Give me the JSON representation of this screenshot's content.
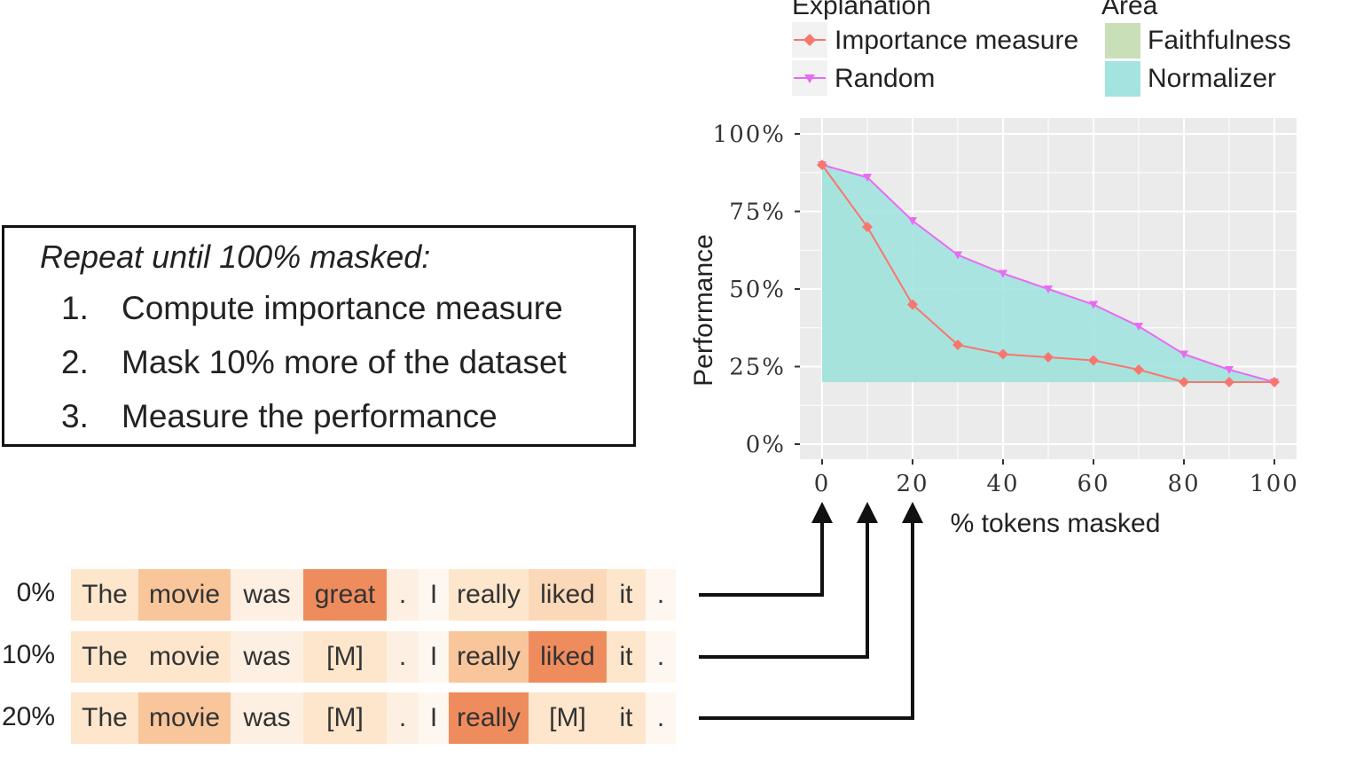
{
  "algorithm": {
    "heading": "Repeat until 100% masked:",
    "steps": [
      {
        "num": "1.",
        "text": "Compute importance measure"
      },
      {
        "num": "2.",
        "text": "Mask 10% more of the dataset"
      },
      {
        "num": "3.",
        "text": "Measure the performance"
      }
    ]
  },
  "legend": {
    "explanation_title": "Explanation",
    "area_title": "Area",
    "items": [
      {
        "label": "Importance measure",
        "color": "#f8766d",
        "marker": "diamond"
      },
      {
        "label": "Random",
        "color": "#e76bf3",
        "marker": "triangle-down"
      }
    ],
    "areas": [
      {
        "label": "Faithfulness",
        "color": "#c9dfb7"
      },
      {
        "label": "Normalizer",
        "color": "#a3e3e0"
      }
    ]
  },
  "chart_data": {
    "type": "line",
    "xlabel": "% tokens masked",
    "ylabel": "Performance",
    "x": [
      0,
      10,
      20,
      30,
      40,
      50,
      60,
      70,
      80,
      90,
      100
    ],
    "xlim": [
      0,
      100
    ],
    "ylim": [
      0,
      100
    ],
    "x_ticks": [
      {
        "value": 0,
        "label": "0"
      },
      {
        "value": 20,
        "label": "20"
      },
      {
        "value": 40,
        "label": "40"
      },
      {
        "value": 60,
        "label": "60"
      },
      {
        "value": 80,
        "label": "80"
      },
      {
        "value": 100,
        "label": "100"
      }
    ],
    "y_ticks": [
      {
        "value": 0,
        "label": "0%"
      },
      {
        "value": 25,
        "label": "25%"
      },
      {
        "value": 50,
        "label": "50%"
      },
      {
        "value": 75,
        "label": "75%"
      },
      {
        "value": 100,
        "label": "100%"
      }
    ],
    "series": [
      {
        "name": "Importance measure",
        "values": [
          90,
          70,
          45,
          32,
          29,
          28,
          27,
          24,
          20,
          20,
          20
        ]
      },
      {
        "name": "Random",
        "values": [
          90,
          86,
          72,
          61,
          55,
          50,
          45,
          38,
          29,
          24,
          20
        ]
      }
    ],
    "baseline": 20,
    "grid": true,
    "legend_position": "top"
  },
  "token_rows": [
    {
      "label": "0%",
      "x_link": 0,
      "tokens": [
        {
          "text": "The",
          "color": "#fde6cc"
        },
        {
          "text": "movie",
          "color": "#f9c69c"
        },
        {
          "text": "was",
          "color": "#fdf0e2"
        },
        {
          "text": "great",
          "color": "#ef8c5e"
        },
        {
          "text": ".",
          "color": "#fdf0e2"
        },
        {
          "text": "I",
          "color": "#fef7ef"
        },
        {
          "text": "really",
          "color": "#fde6cc"
        },
        {
          "text": "liked",
          "color": "#fbd9b8"
        },
        {
          "text": "it",
          "color": "#fde6cc"
        },
        {
          "text": ".",
          "color": "#fef7ef"
        }
      ]
    },
    {
      "label": "10%",
      "x_link": 10,
      "tokens": [
        {
          "text": "The",
          "color": "#fde6cc"
        },
        {
          "text": "movie",
          "color": "#fde6cc"
        },
        {
          "text": "was",
          "color": "#fdf0e2"
        },
        {
          "text": "[M]",
          "color": "#fde6cc"
        },
        {
          "text": ".",
          "color": "#fdf0e2"
        },
        {
          "text": "I",
          "color": "#fef7ef"
        },
        {
          "text": "really",
          "color": "#f9c69c"
        },
        {
          "text": "liked",
          "color": "#ef8c5e"
        },
        {
          "text": "it",
          "color": "#fde6cc"
        },
        {
          "text": ".",
          "color": "#fef7ef"
        }
      ]
    },
    {
      "label": "20%",
      "x_link": 20,
      "tokens": [
        {
          "text": "The",
          "color": "#fde6cc"
        },
        {
          "text": "movie",
          "color": "#f9c69c"
        },
        {
          "text": "was",
          "color": "#fdf0e2"
        },
        {
          "text": "[M]",
          "color": "#fde6cc"
        },
        {
          "text": ".",
          "color": "#fdf0e2"
        },
        {
          "text": "I",
          "color": "#fef7ef"
        },
        {
          "text": "really",
          "color": "#ef8c5e"
        },
        {
          "text": "[M]",
          "color": "#fde6cc"
        },
        {
          "text": "it",
          "color": "#fde6cc"
        },
        {
          "text": ".",
          "color": "#fef7ef"
        }
      ]
    }
  ]
}
